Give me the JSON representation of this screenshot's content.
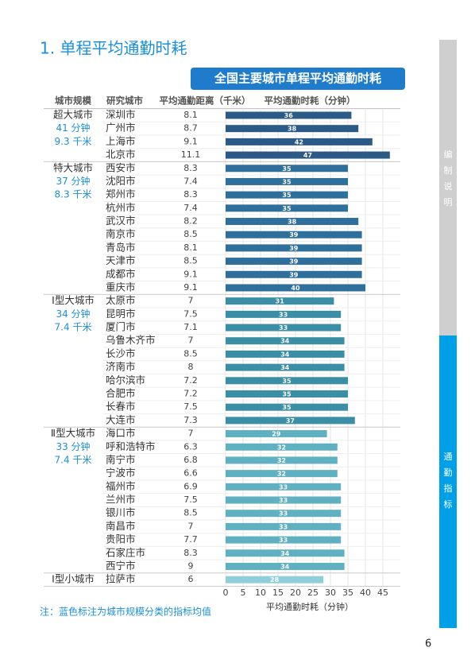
{
  "section_title": "1. 单程平均通勤时耗",
  "chart_data": {
    "type": "bar",
    "orientation": "horizontal",
    "title": "全国主要城市单程平均通勤时耗",
    "headers": [
      "城市规模",
      "研究城市",
      "平均通勤距离（千米）",
      "平均通勤时耗（分钟）"
    ],
    "groups": [
      {
        "name": "超大城市",
        "time": "41 分钟",
        "distance": "9.3 千米",
        "color": "#2b5a86",
        "cities": [
          "深圳市",
          "广州市",
          "上海市",
          "北京市"
        ],
        "distances": [
          8.1,
          8.7,
          9.1,
          11.1
        ],
        "values": [
          36,
          38,
          42,
          47
        ]
      },
      {
        "name": "特大城市",
        "time": "37 分钟",
        "distance": "8.3 千米",
        "color": "#2f6f9c",
        "cities": [
          "西安市",
          "沈阳市",
          "郑州市",
          "杭州市",
          "武汉市",
          "南京市",
          "青岛市",
          "天津市",
          "成都市",
          "重庆市"
        ],
        "distances": [
          8.3,
          7.4,
          8.3,
          7.4,
          8.2,
          8.5,
          8.1,
          8.5,
          9.1,
          9.1
        ],
        "values": [
          35,
          35,
          35,
          35,
          38,
          39,
          39,
          39,
          39,
          40
        ]
      },
      {
        "name": "Ⅰ型大城市",
        "time": "34 分钟",
        "distance": "7.4 千米",
        "color": "#3a8ea6",
        "cities": [
          "太原市",
          "昆明市",
          "厦门市",
          "乌鲁木齐市",
          "长沙市",
          "济南市",
          "哈尔滨市",
          "合肥市",
          "长春市",
          "大连市"
        ],
        "distances": [
          7.0,
          7.5,
          7.1,
          7.0,
          8.5,
          8.0,
          7.2,
          7.2,
          7.5,
          7.3
        ],
        "values": [
          31,
          33,
          33,
          34,
          34,
          34,
          35,
          35,
          35,
          37
        ]
      },
      {
        "name": "Ⅱ型大城市",
        "time": "33 分钟",
        "distance": "7.4 千米",
        "color": "#5fb0c0",
        "cities": [
          "海口市",
          "呼和浩特市",
          "南宁市",
          "宁波市",
          "福州市",
          "兰州市",
          "银川市",
          "南昌市",
          "贵阳市",
          "石家庄市",
          "西宁市"
        ],
        "distances": [
          7.0,
          6.3,
          6.8,
          6.6,
          6.9,
          7.5,
          8.5,
          7.0,
          7.7,
          8.3,
          9.0
        ],
        "values": [
          29,
          32,
          32,
          32,
          33,
          33,
          33,
          33,
          33,
          34,
          34
        ]
      },
      {
        "name": "Ⅰ型小城市",
        "color": "#8fd0d8",
        "cities": [
          "拉萨市"
        ],
        "distances": [
          6.0
        ],
        "values": [
          28
        ]
      }
    ],
    "xlim": [
      0,
      50
    ],
    "xticks": [
      0,
      5,
      10,
      15,
      20,
      25,
      30,
      35,
      40,
      45
    ],
    "xlabel": "平均通勤时耗（分钟）",
    "grid": true
  },
  "note": "注：蓝色标注为城市规模分类的指标均值",
  "sidebar": [
    "编制说明",
    "通勤指标"
  ],
  "page_number": "6"
}
